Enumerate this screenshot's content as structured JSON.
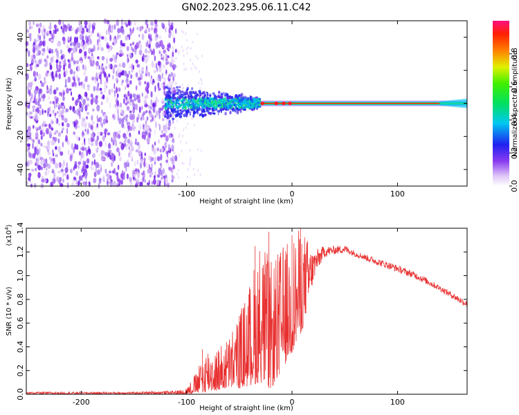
{
  "title": "GN02.2023.295.06.11.C42",
  "chart_data": [
    {
      "type": "heatmap",
      "title": "GN02.2023.295.06.11.C42",
      "xlabel": "Height of straight line (km)",
      "ylabel": "Frequency (Hz)",
      "xlim": [
        -252,
        166
      ],
      "ylim": [
        -50,
        50
      ],
      "xticks": [
        -200,
        -100,
        0,
        100
      ],
      "yticks": [
        -40,
        -20,
        0,
        20,
        40
      ],
      "colorbar": {
        "label": "Normalized spectral amplitude",
        "range": [
          0.0,
          1.0
        ],
        "ticks": [
          0.0,
          0.2,
          0.4,
          0.6,
          0.8
        ]
      },
      "features": [
        {
          "name": "diffuse-noise",
          "x_range": [
            -252,
            -120
          ],
          "freq_range": [
            -50,
            50
          ],
          "amplitude": 0.05
        },
        {
          "name": "transition-zone",
          "x_range": [
            -120,
            -30
          ],
          "freq_range": [
            -12,
            12
          ],
          "amplitude": 0.35
        },
        {
          "name": "carrier-line",
          "x_range": [
            -30,
            166
          ],
          "freq_center": 0,
          "amplitude": 0.9
        }
      ]
    },
    {
      "type": "line",
      "xlabel": "Height of straight line (km)",
      "ylabel": "SNR (10 * v/v)",
      "y_multiplier": "(x10",
      "y_exponent": "4",
      "y_exponent_close": ")",
      "xlim": [
        -252,
        166
      ],
      "ylim": [
        0.0,
        1.4
      ],
      "xticks": [
        -200,
        -100,
        0,
        100
      ],
      "yticks": [
        0.0,
        0.2,
        0.4,
        0.6,
        0.8,
        1.0,
        1.2,
        1.4
      ],
      "line_color": "#e83030",
      "series": [
        {
          "name": "SNR",
          "envelope_x": [
            -252,
            -150,
            -110,
            -100,
            -90,
            -80,
            -70,
            -60,
            -50,
            -40,
            -30,
            -20,
            -10,
            0,
            10,
            20,
            30,
            40,
            50,
            60,
            80,
            100,
            120,
            140,
            166
          ],
          "envelope_min": [
            0.0,
            0.0,
            0.0,
            0.0,
            0.01,
            0.02,
            0.03,
            0.05,
            0.05,
            0.07,
            0.1,
            0.04,
            0.2,
            0.35,
            0.55,
            0.95,
            1.15,
            1.18,
            1.19,
            1.16,
            1.09,
            1.03,
            0.96,
            0.87,
            0.73
          ],
          "envelope_max": [
            0.02,
            0.02,
            0.03,
            0.06,
            0.2,
            0.42,
            0.4,
            0.5,
            0.7,
            0.95,
            1.37,
            1.12,
            1.25,
            1.34,
            1.42,
            1.21,
            1.25,
            1.25,
            1.26,
            1.21,
            1.15,
            1.09,
            1.02,
            0.92,
            0.79
          ],
          "spikes": [
            [
              -85,
              0.38
            ],
            [
              -50,
              0.66
            ],
            [
              -35,
              1.25
            ],
            [
              -22,
              1.37
            ],
            [
              -12,
              1.12
            ],
            [
              0,
              1.34
            ],
            [
              8,
              1.42
            ]
          ]
        }
      ]
    }
  ]
}
